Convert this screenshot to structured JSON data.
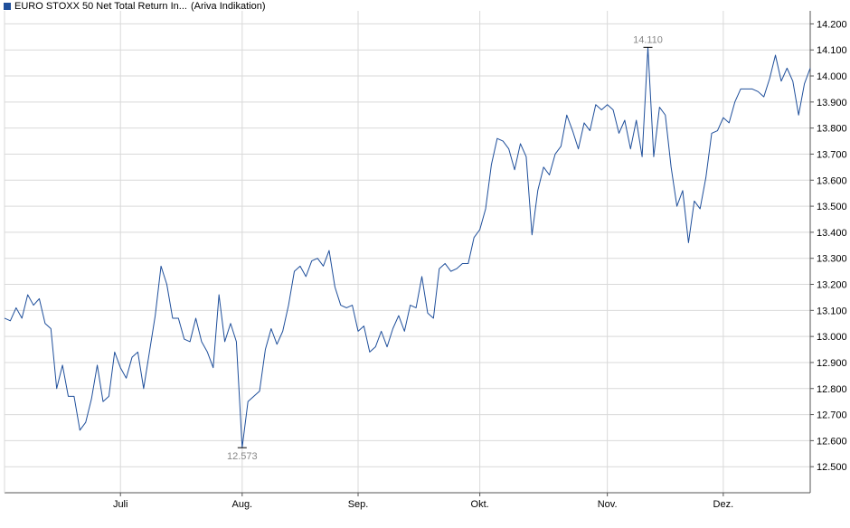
{
  "legend": {
    "series_name": "EURO STOXX 50 Net Total Return In...",
    "note": "(Ariva Indikation)"
  },
  "colors": {
    "series": "#1f4f9b",
    "swatch": "#1f4f9b",
    "grid": "#d9d9d9",
    "axis": "#555555",
    "annotation": "#888888"
  },
  "chart_data": {
    "type": "line",
    "grid": true,
    "legend_placement": "top-left",
    "y_axis_side": "right",
    "ylim": [
      12400,
      14250
    ],
    "y_ticks": [
      12500,
      12600,
      12700,
      12800,
      12900,
      13000,
      13100,
      13200,
      13300,
      13400,
      13500,
      13600,
      13700,
      13800,
      13900,
      14000,
      14100,
      14200
    ],
    "y_tick_labels": [
      "12.500",
      "12.600",
      "12.700",
      "12.800",
      "12.900",
      "13.000",
      "13.100",
      "13.200",
      "13.300",
      "13.400",
      "13.500",
      "13.600",
      "13.700",
      "13.800",
      "13.900",
      "14.000",
      "14.100",
      "14.200"
    ],
    "x_range": [
      1,
      140
    ],
    "x_ticks": [
      21,
      42,
      62,
      83,
      105,
      125
    ],
    "x_tick_labels": [
      "Juli",
      "Aug.",
      "Sep.",
      "Okt.",
      "Nov.",
      "Dez."
    ],
    "annotations": [
      {
        "label": "14.110",
        "x": 112,
        "y": 14110,
        "position": "above"
      },
      {
        "label": "12.573",
        "x": 42,
        "y": 12573,
        "position": "below"
      }
    ],
    "series": [
      {
        "name": "EURO STOXX 50 Net Total Return In...",
        "values": [
          [
            1,
            13070
          ],
          [
            2,
            13060
          ],
          [
            3,
            13110
          ],
          [
            4,
            13070
          ],
          [
            5,
            13160
          ],
          [
            6,
            13120
          ],
          [
            7,
            13145
          ],
          [
            8,
            13050
          ],
          [
            9,
            13030
          ],
          [
            10,
            12800
          ],
          [
            11,
            12890
          ],
          [
            12,
            12770
          ],
          [
            13,
            12770
          ],
          [
            14,
            12640
          ],
          [
            15,
            12670
          ],
          [
            16,
            12760
          ],
          [
            17,
            12890
          ],
          [
            18,
            12750
          ],
          [
            19,
            12770
          ],
          [
            20,
            12940
          ],
          [
            21,
            12880
          ],
          [
            22,
            12840
          ],
          [
            23,
            12920
          ],
          [
            24,
            12940
          ],
          [
            25,
            12800
          ],
          [
            26,
            12940
          ],
          [
            27,
            13080
          ],
          [
            28,
            13270
          ],
          [
            29,
            13200
          ],
          [
            30,
            13070
          ],
          [
            31,
            13070
          ],
          [
            32,
            12990
          ],
          [
            33,
            12980
          ],
          [
            34,
            13070
          ],
          [
            35,
            12980
          ],
          [
            36,
            12940
          ],
          [
            37,
            12880
          ],
          [
            38,
            13160
          ],
          [
            39,
            12980
          ],
          [
            40,
            13050
          ],
          [
            41,
            12980
          ],
          [
            42,
            12573
          ],
          [
            43,
            12750
          ],
          [
            44,
            12770
          ],
          [
            45,
            12790
          ],
          [
            46,
            12950
          ],
          [
            47,
            13030
          ],
          [
            48,
            12970
          ],
          [
            49,
            13020
          ],
          [
            50,
            13120
          ],
          [
            51,
            13250
          ],
          [
            52,
            13270
          ],
          [
            53,
            13230
          ],
          [
            54,
            13290
          ],
          [
            55,
            13300
          ],
          [
            56,
            13270
          ],
          [
            57,
            13330
          ],
          [
            58,
            13190
          ],
          [
            59,
            13120
          ],
          [
            60,
            13110
          ],
          [
            61,
            13120
          ],
          [
            62,
            13020
          ],
          [
            63,
            13040
          ],
          [
            64,
            12940
          ],
          [
            65,
            12960
          ],
          [
            66,
            13020
          ],
          [
            67,
            12960
          ],
          [
            68,
            13030
          ],
          [
            69,
            13080
          ],
          [
            70,
            13020
          ],
          [
            71,
            13120
          ],
          [
            72,
            13110
          ],
          [
            73,
            13230
          ],
          [
            74,
            13090
          ],
          [
            75,
            13070
          ],
          [
            76,
            13260
          ],
          [
            77,
            13280
          ],
          [
            78,
            13250
          ],
          [
            79,
            13260
          ],
          [
            80,
            13280
          ],
          [
            81,
            13280
          ],
          [
            82,
            13380
          ],
          [
            83,
            13410
          ],
          [
            84,
            13490
          ],
          [
            85,
            13660
          ],
          [
            86,
            13760
          ],
          [
            87,
            13750
          ],
          [
            88,
            13720
          ],
          [
            89,
            13640
          ],
          [
            90,
            13740
          ],
          [
            91,
            13690
          ],
          [
            92,
            13390
          ],
          [
            93,
            13560
          ],
          [
            94,
            13650
          ],
          [
            95,
            13620
          ],
          [
            96,
            13700
          ],
          [
            97,
            13730
          ],
          [
            98,
            13850
          ],
          [
            99,
            13790
          ],
          [
            100,
            13720
          ],
          [
            101,
            13820
          ],
          [
            102,
            13790
          ],
          [
            103,
            13890
          ],
          [
            104,
            13870
          ],
          [
            105,
            13890
          ],
          [
            106,
            13870
          ],
          [
            107,
            13780
          ],
          [
            108,
            13830
          ],
          [
            109,
            13720
          ],
          [
            110,
            13830
          ],
          [
            111,
            13690
          ],
          [
            112,
            14110
          ],
          [
            113,
            13690
          ],
          [
            114,
            13880
          ],
          [
            115,
            13850
          ],
          [
            116,
            13650
          ],
          [
            117,
            13500
          ],
          [
            118,
            13560
          ],
          [
            119,
            13360
          ],
          [
            120,
            13520
          ],
          [
            121,
            13490
          ],
          [
            122,
            13610
          ],
          [
            123,
            13780
          ],
          [
            124,
            13790
          ],
          [
            125,
            13840
          ],
          [
            126,
            13820
          ],
          [
            127,
            13900
          ],
          [
            128,
            13950
          ],
          [
            129,
            13950
          ],
          [
            130,
            13950
          ],
          [
            131,
            13940
          ],
          [
            132,
            13920
          ],
          [
            133,
            13990
          ],
          [
            134,
            14080
          ],
          [
            135,
            13980
          ],
          [
            136,
            14030
          ],
          [
            137,
            13980
          ],
          [
            138,
            13850
          ],
          [
            139,
            13970
          ],
          [
            140,
            14030
          ]
        ]
      }
    ]
  }
}
